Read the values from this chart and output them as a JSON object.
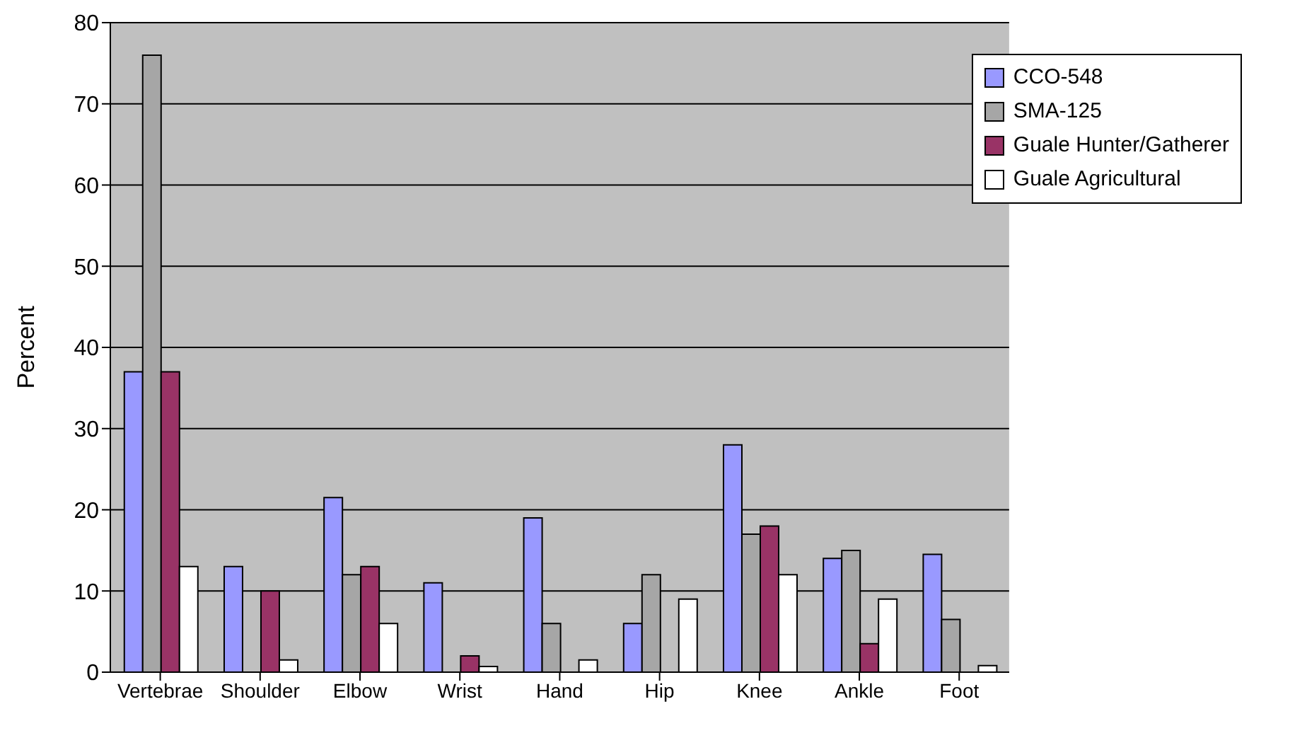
{
  "chart_data": {
    "type": "bar",
    "ylabel": "Percent",
    "categories": [
      "Vertebrae",
      "Shoulder",
      "Elbow",
      "Wrist",
      "Hand",
      "Hip",
      "Knee",
      "Ankle",
      "Foot"
    ],
    "series": [
      {
        "name": "CCO-548",
        "color": "#9999ff",
        "values": [
          37,
          13,
          21.5,
          11,
          19,
          6,
          28,
          14,
          14.5
        ]
      },
      {
        "name": "SMA-125",
        "color": "#a6a6a6",
        "values": [
          76,
          0,
          12,
          0,
          6,
          12,
          17,
          15,
          6.5
        ]
      },
      {
        "name": "Guale Hunter/Gatherer",
        "color": "#993366",
        "values": [
          37,
          10,
          13,
          2,
          0,
          0,
          18,
          3.5,
          0
        ]
      },
      {
        "name": "Guale Agricultural",
        "color": "#ffffff",
        "values": [
          13,
          1.5,
          6,
          0.7,
          1.5,
          9,
          12,
          9,
          0.8
        ]
      }
    ],
    "ylim": [
      0,
      80
    ],
    "yticks": [
      0,
      10,
      20,
      30,
      40,
      50,
      60,
      70,
      80
    ],
    "grid": "y",
    "legend": "top right"
  }
}
